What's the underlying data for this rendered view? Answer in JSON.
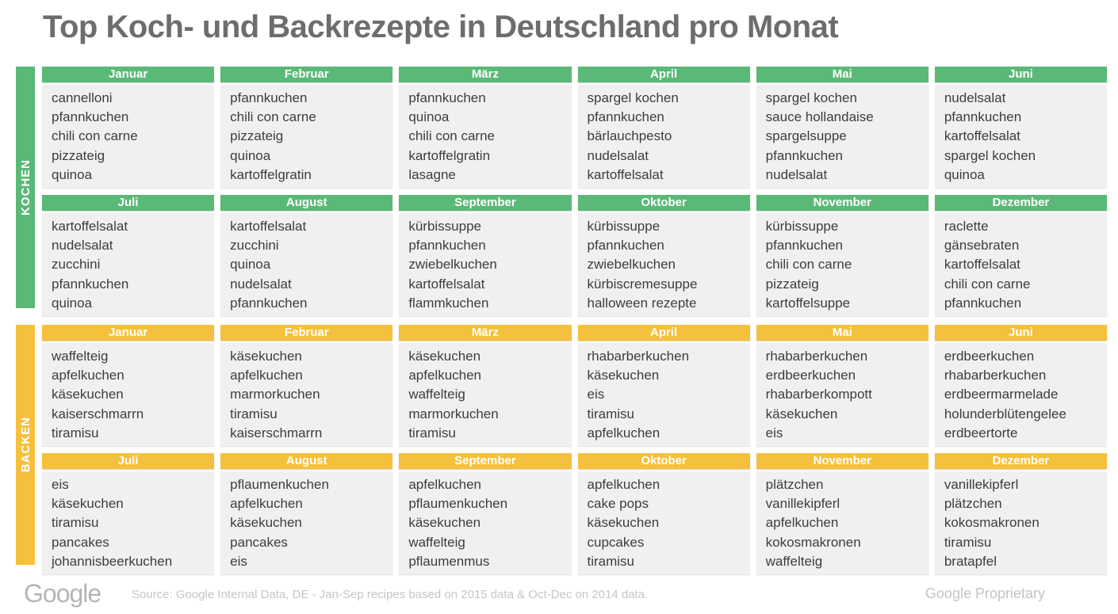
{
  "title": "Top Koch- und Backrezepte in Deutschland pro Monat",
  "chart_data": {
    "type": "table",
    "title": "Top Koch- und Backrezepte in Deutschland pro Monat",
    "sections": [
      {
        "label": "KOCHEN",
        "color": "#5bb977",
        "months": [
          {
            "name": "Januar",
            "items": [
              "cannelloni",
              "pfannkuchen",
              "chili con carne",
              "pizzateig",
              "quinoa"
            ]
          },
          {
            "name": "Februar",
            "items": [
              "pfannkuchen",
              "chili con carne",
              "pizzateig",
              "quinoa",
              "kartoffelgratin"
            ]
          },
          {
            "name": "März",
            "items": [
              "pfannkuchen",
              "quinoa",
              "chili con carne",
              "kartoffelgratin",
              "lasagne"
            ]
          },
          {
            "name": "April",
            "items": [
              "spargel kochen",
              "pfannkuchen",
              "bärlauchpesto",
              "nudelsalat",
              "kartoffelsalat"
            ]
          },
          {
            "name": "Mai",
            "items": [
              "spargel kochen",
              "sauce hollandaise",
              "spargelsuppe",
              "pfannkuchen",
              "nudelsalat"
            ]
          },
          {
            "name": "Juni",
            "items": [
              "nudelsalat",
              "pfannkuchen",
              "kartoffelsalat",
              "spargel kochen",
              "quinoa"
            ]
          },
          {
            "name": "Juli",
            "items": [
              "kartoffelsalat",
              "nudelsalat",
              "zucchini",
              "pfannkuchen",
              "quinoa"
            ]
          },
          {
            "name": "August",
            "items": [
              "kartoffelsalat",
              "zucchini",
              "quinoa",
              "nudelsalat",
              "pfannkuchen"
            ]
          },
          {
            "name": "September",
            "items": [
              "kürbissuppe",
              "pfannkuchen",
              "zwiebelkuchen",
              "kartoffelsalat",
              "flammkuchen"
            ]
          },
          {
            "name": "Oktober",
            "items": [
              "kürbissuppe",
              "pfannkuchen",
              "zwiebelkuchen",
              "kürbiscremesuppe",
              "halloween rezepte"
            ]
          },
          {
            "name": "November",
            "items": [
              "kürbissuppe",
              "pfannkuchen",
              "chili con carne",
              "pizzateig",
              "kartoffelsuppe"
            ]
          },
          {
            "name": "Dezember",
            "items": [
              "raclette",
              "gänsebraten",
              "kartoffelsalat",
              "chili con carne",
              "pfannkuchen"
            ]
          }
        ]
      },
      {
        "label": "BACKEN",
        "color": "#f5c03d",
        "months": [
          {
            "name": "Januar",
            "items": [
              "waffelteig",
              "apfelkuchen",
              "käsekuchen",
              "kaiserschmarrn",
              "tiramisu"
            ]
          },
          {
            "name": "Februar",
            "items": [
              "käsekuchen",
              "apfelkuchen",
              "marmorkuchen",
              "tiramisu",
              "kaiserschmarrn"
            ]
          },
          {
            "name": "März",
            "items": [
              "käsekuchen",
              "apfelkuchen",
              "waffelteig",
              "marmorkuchen",
              "tiramisu"
            ]
          },
          {
            "name": "April",
            "items": [
              "rhabarberkuchen",
              "käsekuchen",
              "eis",
              "tiramisu",
              "apfelkuchen"
            ]
          },
          {
            "name": "Mai",
            "items": [
              "rhabarberkuchen",
              "erdbeerkuchen",
              "rhabarberkompott",
              "käsekuchen",
              "eis"
            ]
          },
          {
            "name": "Juni",
            "items": [
              "erdbeerkuchen",
              "rhabarberkuchen",
              "erdbeermarmelade",
              "holunderblütengelee",
              "erdbeertorte"
            ]
          },
          {
            "name": "Juli",
            "items": [
              "eis",
              "käsekuchen",
              "tiramisu",
              "pancakes",
              "johannisbeerkuchen"
            ]
          },
          {
            "name": "August",
            "items": [
              "pflaumenkuchen",
              "apfelkuchen",
              "käsekuchen",
              "pancakes",
              "eis"
            ]
          },
          {
            "name": "September",
            "items": [
              "apfelkuchen",
              "pflaumenkuchen",
              "käsekuchen",
              "waffelteig",
              "pflaumenmus"
            ]
          },
          {
            "name": "Oktober",
            "items": [
              "apfelkuchen",
              "cake pops",
              "käsekuchen",
              "cupcakes",
              "tiramisu"
            ]
          },
          {
            "name": "November",
            "items": [
              "plätzchen",
              "vanillekipferl",
              "apfelkuchen",
              "kokosmakronen",
              "waffelteig"
            ]
          },
          {
            "name": "Dezember",
            "items": [
              "vanillekipferl",
              "plätzchen",
              "kokosmakronen",
              "tiramisu",
              "bratapfel"
            ]
          }
        ]
      }
    ]
  },
  "footer": {
    "logo": "Google",
    "source": "Source: Google Internal Data, DE - Jan-Sep recipes based on 2015 data & Oct-Dec on 2014 data.",
    "proprietary": "Google Proprietary"
  }
}
